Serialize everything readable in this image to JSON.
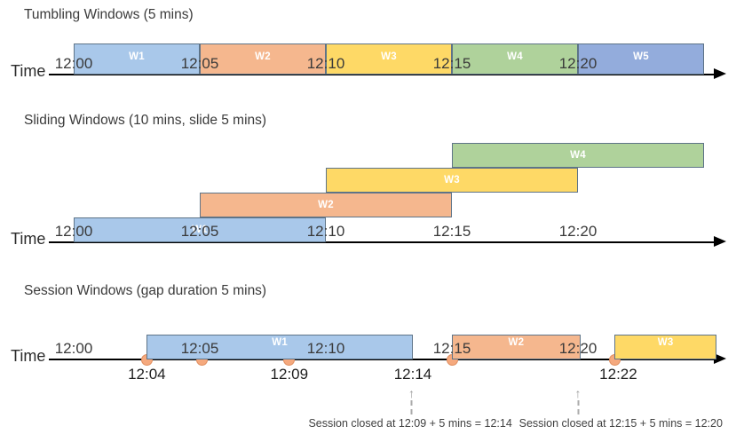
{
  "palette": {
    "blue": "#A9C8EA",
    "orange": "#F5B78E",
    "yellow": "#FED966",
    "green": "#AFD29B",
    "blue2": "#93ACDC",
    "bar_border": "#5E7488",
    "dot_fill": "#F5A97E",
    "dot_border": "#E08F60",
    "timeline_color": "#000000",
    "marker_gray": "#ABABAB"
  },
  "sections": [
    {
      "type": "tumbling",
      "title": "Tumbling Windows (5 mins)",
      "axis_label": "Time",
      "ticks": [
        "12:00",
        "12:05",
        "12:10",
        "12:15",
        "12:20"
      ],
      "tick_minutes": [
        0,
        5,
        10,
        15,
        20
      ],
      "windows": [
        {
          "label": "W1",
          "start": 0,
          "end": 5,
          "color": "blue"
        },
        {
          "label": "W2",
          "start": 5,
          "end": 10,
          "color": "orange"
        },
        {
          "label": "W3",
          "start": 10,
          "end": 15,
          "color": "yellow"
        },
        {
          "label": "W4",
          "start": 15,
          "end": 20,
          "color": "green"
        },
        {
          "label": "W5",
          "start": 20,
          "end": 25,
          "color": "blue2"
        }
      ]
    },
    {
      "type": "sliding",
      "title": "Sliding Windows (10 mins, slide 5 mins)",
      "axis_label": "Time",
      "ticks": [
        "12:00",
        "12:05",
        "12:10",
        "12:15",
        "12:20"
      ],
      "tick_minutes": [
        0,
        5,
        10,
        15,
        20
      ],
      "windows": [
        {
          "label": "W1",
          "start": 0,
          "end": 10,
          "color": "blue",
          "row": 0
        },
        {
          "label": "W2",
          "start": 5,
          "end": 15,
          "color": "orange",
          "row": 1
        },
        {
          "label": "W3",
          "start": 10,
          "end": 20,
          "color": "yellow",
          "row": 2
        },
        {
          "label": "W4",
          "start": 15,
          "end": 25,
          "color": "green",
          "row": 3
        }
      ]
    },
    {
      "type": "session",
      "title": "Session Windows (gap duration 5 mins)",
      "axis_label": "Time",
      "ticks": [
        "12:00",
        "12:05",
        "12:10",
        "12:15",
        "12:20"
      ],
      "tick_minutes": [
        0,
        5,
        10,
        15,
        20
      ],
      "windows": [
        {
          "label": "W1",
          "start": 2.9,
          "end": 13.45,
          "color": "blue"
        },
        {
          "label": "W2",
          "start": 15,
          "end": 20.1,
          "color": "orange"
        },
        {
          "label": "W3",
          "start": 21.45,
          "end": 25.5,
          "color": "yellow"
        }
      ],
      "events": [
        {
          "min": 2.9
        },
        {
          "min": 5.1
        },
        {
          "min": 8.55
        },
        {
          "min": 15
        },
        {
          "min": 21.45
        }
      ],
      "event_labels": [
        {
          "min": 2.9,
          "text": "12:04"
        },
        {
          "min": 8.55,
          "text": "12:09"
        },
        {
          "min": 13.45,
          "text": "12:14"
        },
        {
          "min": 21.6,
          "text": "12:22"
        }
      ],
      "close_markers": [
        {
          "arrow_min": 13.4,
          "caption_min": 13.35,
          "caption": "Session closed at 12:09 + 5 mins = 12:14"
        },
        {
          "arrow_min": 20.0,
          "caption_min": 21.7,
          "caption": "Session closed at 12:15 + 5 mins = 12:20"
        }
      ]
    }
  ]
}
